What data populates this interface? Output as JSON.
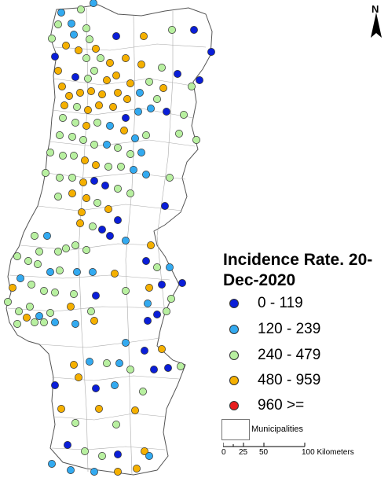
{
  "legend": {
    "title": "Incidence Rate. 20-Dec-2020",
    "classes": [
      {
        "label": "0 - 119",
        "color": "#0a1ed8"
      },
      {
        "label": "120 - 239",
        "color": "#33aaf0"
      },
      {
        "label": "240 - 479",
        "color": "#b8f0a0"
      },
      {
        "label": "480 - 959",
        "color": "#f5b000"
      },
      {
        "label": "960 >=",
        "color": "#e81c1c"
      }
    ],
    "municipalities_label": "Municipalities"
  },
  "scale_bar": {
    "ticks": [
      "0",
      "25",
      "50",
      "100 Kilometers"
    ]
  },
  "north_arrow": {
    "label": "N",
    "icon": "north-arrow-icon"
  },
  "map": {
    "outline_color": "#888888",
    "background": "#ffffff"
  }
}
